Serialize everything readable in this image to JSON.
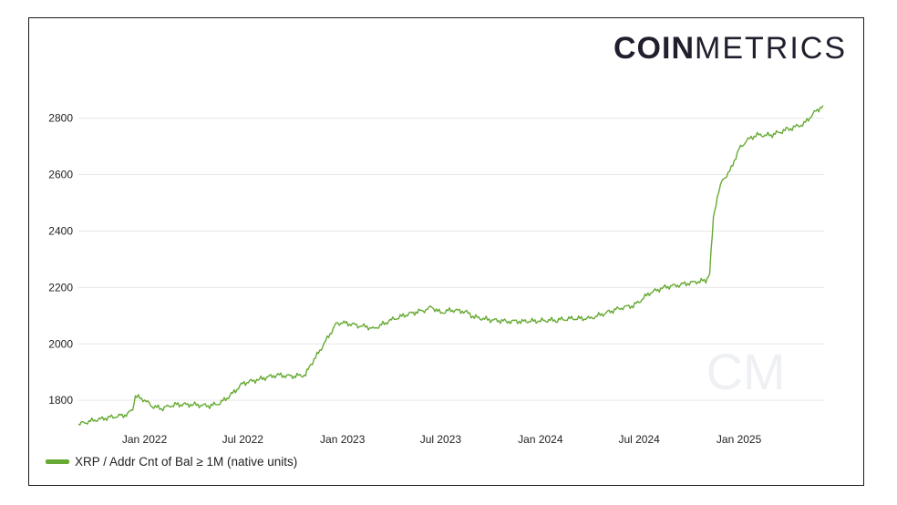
{
  "brand": {
    "logo_strong": "COIN",
    "logo_light": "METRICS",
    "watermark": "CM"
  },
  "chart_data": {
    "type": "line",
    "ylim": [
      1710,
      2870
    ],
    "yticks": [
      1800,
      2000,
      2200,
      2400,
      2600,
      2800
    ],
    "xlim": [
      "2021-09-01",
      "2025-06-07"
    ],
    "xticks": [
      {
        "date": "2022-01-01",
        "label": "Jan 2022"
      },
      {
        "date": "2022-07-01",
        "label": "Jul 2022"
      },
      {
        "date": "2023-01-01",
        "label": "Jan 2023"
      },
      {
        "date": "2023-07-01",
        "label": "Jul 2023"
      },
      {
        "date": "2024-01-01",
        "label": "Jan 2024"
      },
      {
        "date": "2024-07-01",
        "label": "Jul 2024"
      },
      {
        "date": "2025-01-01",
        "label": "Jan 2025"
      }
    ],
    "grid": {
      "horizontal": true,
      "vertical": false
    },
    "legend_position": "bottom-left",
    "series": [
      {
        "name": "XRP / Addr Cnt of Bal ≥ 1M (native units)",
        "color": "#66aa33",
        "points": [
          [
            "2021-09-01",
            1715
          ],
          [
            "2021-09-15",
            1722
          ],
          [
            "2021-10-01",
            1730
          ],
          [
            "2021-10-15",
            1735
          ],
          [
            "2021-11-01",
            1740
          ],
          [
            "2021-11-15",
            1745
          ],
          [
            "2021-12-01",
            1750
          ],
          [
            "2021-12-10",
            1770
          ],
          [
            "2021-12-15",
            1815
          ],
          [
            "2022-01-01",
            1800
          ],
          [
            "2022-01-15",
            1780
          ],
          [
            "2022-02-01",
            1770
          ],
          [
            "2022-02-15",
            1780
          ],
          [
            "2022-03-01",
            1785
          ],
          [
            "2022-04-01",
            1785
          ],
          [
            "2022-05-01",
            1780
          ],
          [
            "2022-05-20",
            1790
          ],
          [
            "2022-06-10",
            1820
          ],
          [
            "2022-07-01",
            1860
          ],
          [
            "2022-08-01",
            1875
          ],
          [
            "2022-09-01",
            1890
          ],
          [
            "2022-10-01",
            1885
          ],
          [
            "2022-10-25",
            1890
          ],
          [
            "2022-11-01",
            1920
          ],
          [
            "2022-11-15",
            1960
          ],
          [
            "2022-12-01",
            2010
          ],
          [
            "2022-12-20",
            2070
          ],
          [
            "2023-01-01",
            2075
          ],
          [
            "2023-02-01",
            2065
          ],
          [
            "2023-03-01",
            2055
          ],
          [
            "2023-04-01",
            2085
          ],
          [
            "2023-05-01",
            2105
          ],
          [
            "2023-06-01",
            2120
          ],
          [
            "2023-06-15",
            2130
          ],
          [
            "2023-07-01",
            2110
          ],
          [
            "2023-07-20",
            2120
          ],
          [
            "2023-08-15",
            2115
          ],
          [
            "2023-09-01",
            2095
          ],
          [
            "2023-10-01",
            2085
          ],
          [
            "2023-11-01",
            2080
          ],
          [
            "2023-12-01",
            2080
          ],
          [
            "2024-01-01",
            2082
          ],
          [
            "2024-02-01",
            2085
          ],
          [
            "2024-03-01",
            2090
          ],
          [
            "2024-04-01",
            2090
          ],
          [
            "2024-05-01",
            2110
          ],
          [
            "2024-06-01",
            2130
          ],
          [
            "2024-06-20",
            2135
          ],
          [
            "2024-07-01",
            2150
          ],
          [
            "2024-07-20",
            2180
          ],
          [
            "2024-08-15",
            2200
          ],
          [
            "2024-09-15",
            2210
          ],
          [
            "2024-10-15",
            2220
          ],
          [
            "2024-11-01",
            2225
          ],
          [
            "2024-11-08",
            2250
          ],
          [
            "2024-11-15",
            2450
          ],
          [
            "2024-11-22",
            2520
          ],
          [
            "2024-12-01",
            2580
          ],
          [
            "2024-12-15",
            2610
          ],
          [
            "2025-01-01",
            2690
          ],
          [
            "2025-01-15",
            2720
          ],
          [
            "2025-02-01",
            2740
          ],
          [
            "2025-03-01",
            2740
          ],
          [
            "2025-04-01",
            2760
          ],
          [
            "2025-05-01",
            2780
          ],
          [
            "2025-05-20",
            2820
          ],
          [
            "2025-06-05",
            2845
          ]
        ]
      }
    ]
  }
}
